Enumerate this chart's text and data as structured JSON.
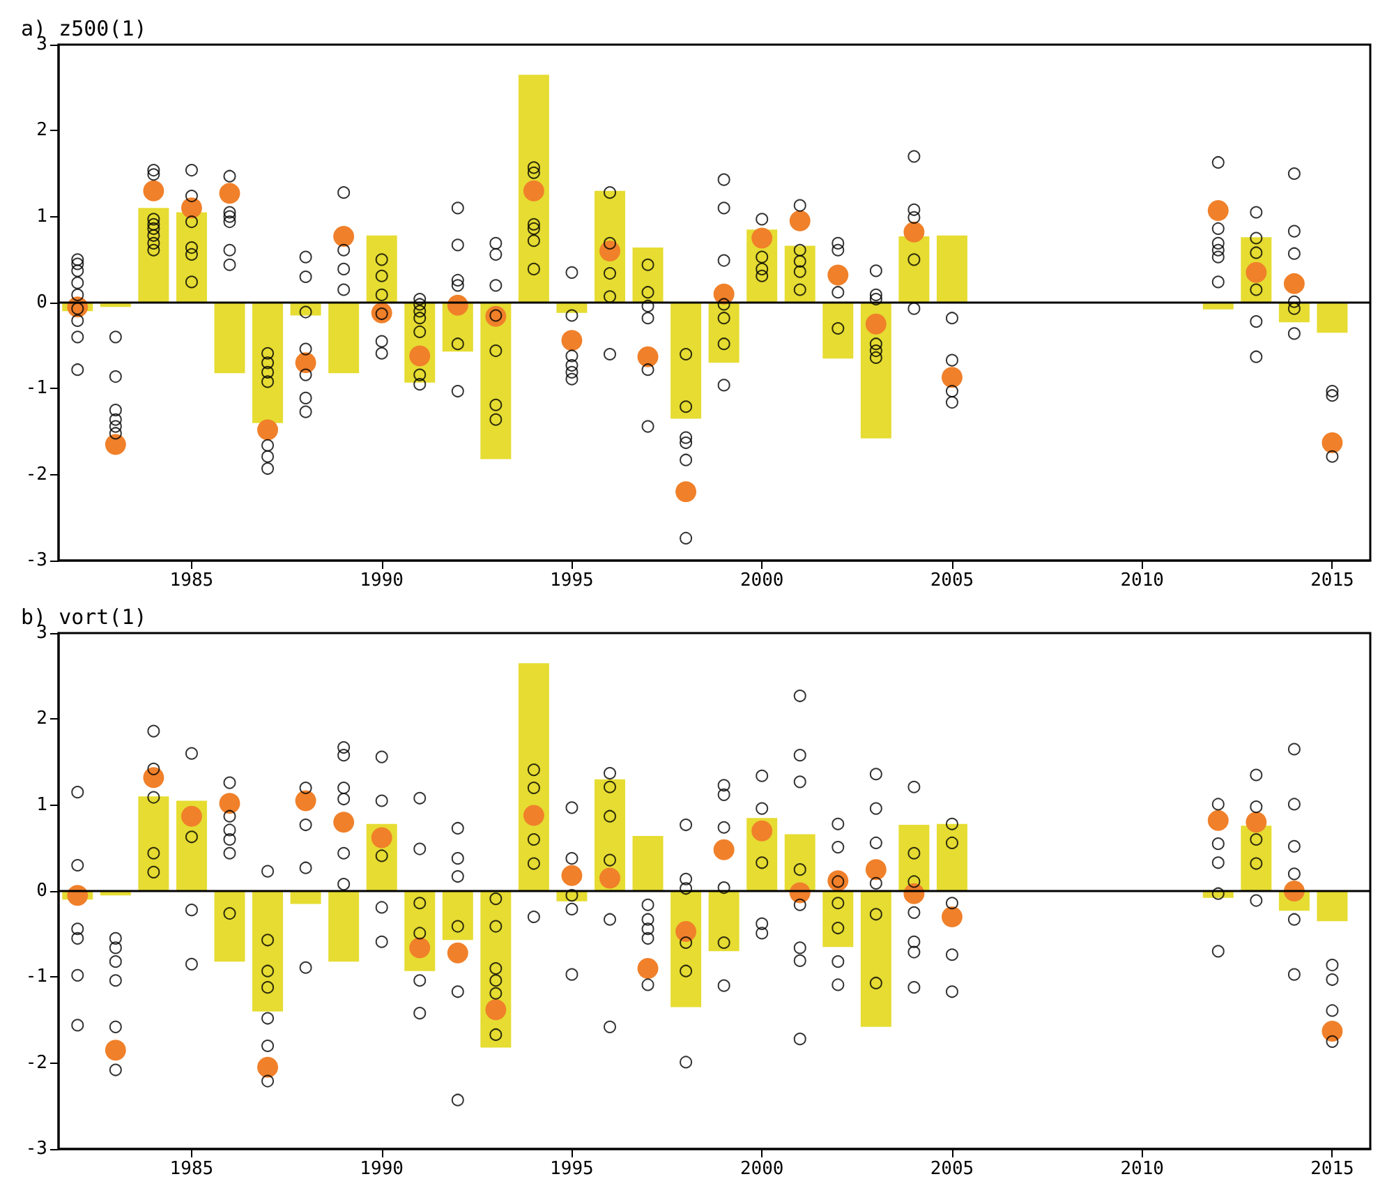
{
  "chart_data": [
    {
      "type": "bar",
      "title": "a) z500(1)",
      "xlim": [
        1981.5,
        2016
      ],
      "xticks": [
        1985,
        1990,
        1995,
        2000,
        2005,
        2010,
        2015
      ],
      "ylim": [
        -3,
        3
      ],
      "yticks": [
        -3,
        -2,
        -1,
        0,
        1,
        2,
        3
      ],
      "ref_lines": [
        {
          "axis": "y",
          "value": 0,
          "color": "#000000"
        }
      ],
      "series": [
        {
          "color": "#e6dc32",
          "x": [
            1982,
            1983,
            1984,
            1985,
            1986,
            1987,
            1988,
            1989,
            1990,
            1991,
            1992,
            1993,
            1994,
            1995,
            1996,
            1997,
            1998,
            1999,
            2000,
            2001,
            2002,
            2003,
            2004,
            2005,
            2012,
            2013,
            2014,
            2015
          ],
          "values": [
            -0.1,
            -0.05,
            1.1,
            1.05,
            -0.82,
            -1.4,
            -0.15,
            -0.82,
            0.78,
            -0.93,
            -0.57,
            -1.82,
            2.65,
            -0.12,
            1.3,
            0.64,
            -1.35,
            -0.7,
            0.85,
            0.66,
            -0.65,
            -1.58,
            0.77,
            0.78,
            -0.08,
            0.76,
            -0.23,
            -0.35
          ]
        },
        {
          "type": "scatter",
          "marker": "circle",
          "color": "#000000",
          "x": [
            1982,
            1982,
            1982,
            1982,
            1982,
            1982,
            1982,
            1982,
            1982,
            1983,
            1983,
            1983,
            1983,
            1983,
            1983,
            1984,
            1984,
            1984,
            1984,
            1984,
            1984,
            1984,
            1984,
            1985,
            1985,
            1985,
            1985,
            1985,
            1985,
            1986,
            1986,
            1986,
            1986,
            1986,
            1986,
            1987,
            1987,
            1987,
            1987,
            1987,
            1987,
            1987,
            1988,
            1988,
            1988,
            1988,
            1988,
            1988,
            1988,
            1989,
            1989,
            1989,
            1989,
            1990,
            1990,
            1990,
            1990,
            1990,
            1990,
            1991,
            1991,
            1991,
            1991,
            1991,
            1991,
            1991,
            1992,
            1992,
            1992,
            1992,
            1992,
            1992,
            1993,
            1993,
            1993,
            1993,
            1993,
            1993,
            1993,
            1994,
            1994,
            1994,
            1994,
            1994,
            1994,
            1995,
            1995,
            1995,
            1995,
            1995,
            1995,
            1996,
            1996,
            1996,
            1996,
            1996,
            1997,
            1997,
            1997,
            1997,
            1997,
            1997,
            1998,
            1998,
            1998,
            1998,
            1998,
            1998,
            1999,
            1999,
            1999,
            1999,
            1999,
            1999,
            1999,
            2000,
            2000,
            2000,
            2000,
            2001,
            2001,
            2001,
            2001,
            2001,
            2002,
            2002,
            2002,
            2002,
            2003,
            2003,
            2003,
            2003,
            2003,
            2003,
            2004,
            2004,
            2004,
            2004,
            2004,
            2005,
            2005,
            2005,
            2005,
            2012,
            2012,
            2012,
            2012,
            2012,
            2012,
            2013,
            2013,
            2013,
            2013,
            2013,
            2013,
            2014,
            2014,
            2014,
            2014,
            2014,
            2014,
            2015,
            2015,
            2015
          ],
          "values": [
            0.5,
            0.45,
            0.37,
            0.23,
            0.09,
            -0.07,
            -0.21,
            -0.4,
            -0.78,
            -0.4,
            -0.86,
            -1.25,
            -1.36,
            -1.44,
            -1.52,
            1.54,
            1.49,
            0.97,
            0.91,
            0.86,
            0.78,
            0.69,
            0.61,
            1.54,
            1.24,
            0.94,
            0.64,
            0.56,
            0.24,
            1.47,
            1.05,
            1.0,
            0.94,
            0.61,
            0.44,
            -0.59,
            -0.7,
            -0.81,
            -0.92,
            -1.66,
            -1.79,
            -1.93,
            0.53,
            0.3,
            -0.11,
            -0.54,
            -0.84,
            -1.11,
            -1.27,
            1.28,
            0.61,
            0.39,
            0.15,
            0.5,
            0.31,
            0.09,
            -0.13,
            -0.45,
            -0.59,
            0.04,
            -0.02,
            -0.1,
            -0.18,
            -0.34,
            -0.84,
            -0.95,
            1.1,
            0.67,
            0.26,
            0.2,
            -0.48,
            -1.03,
            0.69,
            0.56,
            0.2,
            -0.15,
            -0.56,
            -1.19,
            -1.36,
            1.57,
            1.51,
            0.91,
            0.86,
            0.72,
            0.39,
            0.35,
            -0.15,
            -0.62,
            -0.73,
            -0.81,
            -0.89,
            1.28,
            0.69,
            0.34,
            0.07,
            -0.6,
            0.44,
            0.12,
            -0.04,
            -0.18,
            -0.78,
            -1.44,
            -0.6,
            -1.21,
            -1.57,
            -1.63,
            -1.83,
            -2.74,
            1.43,
            1.1,
            0.49,
            -0.02,
            -0.18,
            -0.48,
            -0.96,
            0.97,
            0.53,
            0.39,
            0.31,
            1.13,
            0.61,
            0.48,
            0.36,
            0.15,
            0.69,
            0.61,
            0.12,
            -0.3,
            0.37,
            0.09,
            0.04,
            -0.48,
            -0.56,
            -0.64,
            1.7,
            1.08,
            0.99,
            0.5,
            -0.07,
            -0.18,
            -0.67,
            -1.03,
            -1.16,
            1.63,
            0.86,
            0.69,
            0.61,
            0.53,
            0.24,
            1.05,
            0.75,
            0.58,
            0.15,
            -0.22,
            -0.63,
            1.5,
            0.83,
            0.57,
            0.01,
            -0.07,
            -0.36,
            -1.03,
            -1.08,
            -1.79
          ]
        },
        {
          "type": "scatter",
          "marker": "circle",
          "color": "#f0802a",
          "x": [
            1982,
            1983,
            1984,
            1985,
            1986,
            1987,
            1988,
            1989,
            1990,
            1991,
            1992,
            1993,
            1994,
            1995,
            1996,
            1997,
            1998,
            1999,
            2000,
            2001,
            2002,
            2003,
            2004,
            2005,
            2012,
            2013,
            2014,
            2015
          ],
          "values": [
            -0.05,
            -1.65,
            1.3,
            1.1,
            1.27,
            -1.48,
            -0.7,
            0.77,
            -0.12,
            -0.62,
            -0.03,
            -0.16,
            1.3,
            -0.44,
            0.6,
            -0.63,
            -2.2,
            0.1,
            0.75,
            0.95,
            0.32,
            -0.25,
            0.82,
            -0.87,
            1.07,
            0.35,
            0.22,
            -1.63
          ]
        }
      ]
    },
    {
      "type": "bar",
      "title": "b) vort(1)",
      "xlim": [
        1981.5,
        2016
      ],
      "xticks": [
        1985,
        1990,
        1995,
        2000,
        2005,
        2010,
        2015
      ],
      "ylim": [
        -3,
        3
      ],
      "yticks": [
        -3,
        -2,
        -1,
        0,
        1,
        2,
        3
      ],
      "ref_lines": [
        {
          "axis": "y",
          "value": 0,
          "color": "#000000"
        }
      ],
      "series": [
        {
          "color": "#e6dc32",
          "x": [
            1982,
            1983,
            1984,
            1985,
            1986,
            1987,
            1988,
            1989,
            1990,
            1991,
            1992,
            1993,
            1994,
            1995,
            1996,
            1997,
            1998,
            1999,
            2000,
            2001,
            2002,
            2003,
            2004,
            2005,
            2012,
            2013,
            2014,
            2015
          ],
          "values": [
            -0.1,
            -0.05,
            1.1,
            1.05,
            -0.82,
            -1.4,
            -0.15,
            -0.82,
            0.78,
            -0.93,
            -0.57,
            -1.82,
            2.65,
            -0.12,
            1.3,
            0.64,
            -1.35,
            -0.7,
            0.85,
            0.66,
            -0.65,
            -1.58,
            0.77,
            0.78,
            -0.08,
            0.76,
            -0.23,
            -0.35
          ]
        },
        {
          "type": "scatter",
          "marker": "circle",
          "color": "#000000",
          "x": [
            1982,
            1982,
            1982,
            1982,
            1982,
            1982,
            1983,
            1983,
            1983,
            1983,
            1983,
            1983,
            1984,
            1984,
            1984,
            1984,
            1984,
            1985,
            1985,
            1985,
            1985,
            1986,
            1986,
            1986,
            1986,
            1986,
            1986,
            1987,
            1987,
            1987,
            1987,
            1987,
            1987,
            1987,
            1988,
            1988,
            1988,
            1988,
            1989,
            1989,
            1989,
            1989,
            1989,
            1989,
            1990,
            1990,
            1990,
            1990,
            1990,
            1991,
            1991,
            1991,
            1991,
            1991,
            1991,
            1992,
            1992,
            1992,
            1992,
            1992,
            1992,
            1993,
            1993,
            1993,
            1993,
            1993,
            1993,
            1994,
            1994,
            1994,
            1994,
            1994,
            1995,
            1995,
            1995,
            1995,
            1995,
            1996,
            1996,
            1996,
            1996,
            1996,
            1996,
            1997,
            1997,
            1997,
            1997,
            1997,
            1998,
            1998,
            1998,
            1998,
            1998,
            1998,
            1999,
            1999,
            1999,
            1999,
            1999,
            1999,
            2000,
            2000,
            2000,
            2000,
            2000,
            2001,
            2001,
            2001,
            2001,
            2001,
            2001,
            2001,
            2001,
            2002,
            2002,
            2002,
            2002,
            2002,
            2002,
            2002,
            2003,
            2003,
            2003,
            2003,
            2003,
            2003,
            2004,
            2004,
            2004,
            2004,
            2004,
            2004,
            2004,
            2005,
            2005,
            2005,
            2005,
            2005,
            2012,
            2012,
            2012,
            2012,
            2012,
            2013,
            2013,
            2013,
            2013,
            2013,
            2014,
            2014,
            2014,
            2014,
            2014,
            2014,
            2015,
            2015,
            2015,
            2015
          ],
          "values": [
            1.15,
            0.3,
            -0.44,
            -0.55,
            -0.98,
            -1.56,
            -0.55,
            -0.66,
            -0.82,
            -1.04,
            -1.58,
            -2.08,
            1.86,
            1.42,
            1.09,
            0.44,
            0.22,
            1.6,
            0.63,
            -0.22,
            -0.85,
            1.26,
            0.87,
            0.71,
            0.6,
            0.44,
            -0.26,
            0.23,
            -0.57,
            -0.93,
            -1.12,
            -1.48,
            -1.8,
            -2.21,
            1.2,
            0.77,
            0.27,
            -0.89,
            1.67,
            1.58,
            1.2,
            1.07,
            0.44,
            0.08,
            1.56,
            1.05,
            0.41,
            -0.19,
            -0.59,
            1.08,
            0.49,
            -0.14,
            -0.49,
            -1.04,
            -1.42,
            0.73,
            0.38,
            0.17,
            -0.41,
            -1.17,
            -2.43,
            -0.09,
            -0.41,
            -0.9,
            -1.04,
            -1.19,
            -1.67,
            1.41,
            1.2,
            0.6,
            0.32,
            -0.3,
            0.97,
            0.38,
            -0.05,
            -0.21,
            -0.97,
            1.37,
            1.21,
            0.87,
            0.36,
            -0.33,
            -1.58,
            -0.16,
            -0.33,
            -0.44,
            -0.55,
            -1.09,
            0.77,
            0.14,
            0.03,
            -0.6,
            -0.93,
            -1.99,
            1.23,
            1.12,
            0.74,
            0.04,
            -0.6,
            -1.1,
            1.34,
            0.96,
            0.33,
            -0.38,
            -0.49,
            2.27,
            1.58,
            1.27,
            0.25,
            -0.16,
            -0.66,
            -0.81,
            -1.72,
            0.78,
            0.51,
            0.11,
            -0.14,
            -0.43,
            -0.82,
            -1.09,
            1.36,
            0.96,
            0.56,
            0.09,
            -0.27,
            -1.07,
            1.21,
            0.44,
            0.11,
            -0.25,
            -0.59,
            -0.71,
            -1.12,
            0.78,
            0.56,
            -0.14,
            -0.74,
            -1.17,
            1.01,
            0.55,
            0.33,
            -0.03,
            -0.7,
            1.35,
            0.98,
            0.6,
            0.32,
            -0.11,
            1.65,
            1.01,
            0.52,
            0.2,
            -0.33,
            -0.97,
            -0.86,
            -1.03,
            -1.39,
            -1.75
          ]
        },
        {
          "type": "scatter",
          "marker": "circle",
          "color": "#f0802a",
          "x": [
            1982,
            1983,
            1984,
            1985,
            1986,
            1987,
            1988,
            1989,
            1990,
            1991,
            1992,
            1993,
            1994,
            1995,
            1996,
            1997,
            1998,
            1999,
            2000,
            2001,
            2002,
            2003,
            2004,
            2005,
            2012,
            2013,
            2014,
            2015
          ],
          "values": [
            -0.05,
            -1.85,
            1.32,
            0.87,
            1.02,
            -2.05,
            1.05,
            0.8,
            0.62,
            -0.66,
            -0.72,
            -1.38,
            0.88,
            0.18,
            0.15,
            -0.9,
            -0.47,
            0.48,
            0.7,
            -0.02,
            0.12,
            0.25,
            -0.03,
            -0.3,
            0.82,
            0.8,
            0.0,
            -1.63
          ]
        }
      ]
    }
  ]
}
